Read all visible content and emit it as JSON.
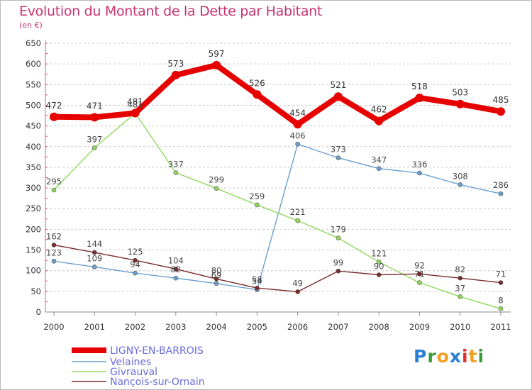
{
  "title": "Evolution du Montant de la Dette par Habitant",
  "subtitle": "(en €)",
  "logo": {
    "letters": [
      {
        "ch": "P",
        "color": "#2a7fd4"
      },
      {
        "ch": "r",
        "color": "#3a9a3a"
      },
      {
        "ch": "o",
        "color": "#f0a020"
      },
      {
        "ch": "x",
        "color": "#2a7fd4"
      },
      {
        "ch": "i",
        "color": "#e03030"
      },
      {
        "ch": "t",
        "color": "#f0a020"
      },
      {
        "ch": "i",
        "color": "#3a9a3a"
      }
    ]
  },
  "chart_data": {
    "type": "line",
    "title": "Evolution du Montant de la Dette par Habitant",
    "subtitle": "(en €)",
    "x": [
      "2000",
      "2001",
      "2002",
      "2003",
      "2004",
      "2005",
      "2006",
      "2007",
      "2008",
      "2009",
      "2010",
      "2011"
    ],
    "ylim": [
      0,
      650
    ],
    "yticks": [
      0,
      50,
      100,
      150,
      200,
      250,
      300,
      350,
      400,
      450,
      500,
      550,
      600,
      650
    ],
    "grid": "horizontal dashed",
    "legend_position": "bottom-left",
    "series": [
      {
        "name": "LIGNY-EN-BARROIS",
        "color": "#e60000",
        "values": [
          472,
          471,
          481,
          573,
          597,
          526,
          454,
          521,
          462,
          518,
          503,
          485
        ]
      },
      {
        "name": "Velaines",
        "color": "#6a9fd0",
        "values": [
          123,
          109,
          94,
          82,
          69,
          54,
          406,
          373,
          347,
          336,
          308,
          286
        ]
      },
      {
        "name": "Givrauval",
        "color": "#8fd85a",
        "values": [
          295,
          397,
          481,
          337,
          299,
          259,
          221,
          179,
          121,
          71,
          37,
          8
        ]
      },
      {
        "name": "Nançois-sur-Ornain",
        "color": "#7a2a2a",
        "values": [
          162,
          144,
          125,
          104,
          80,
          58,
          49,
          99,
          90,
          92,
          82,
          71
        ]
      }
    ]
  }
}
